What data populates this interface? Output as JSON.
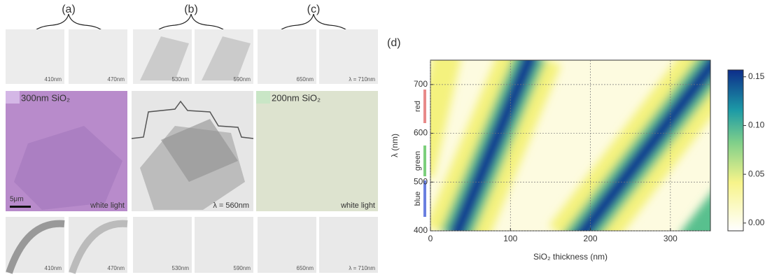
{
  "panels": [
    "(a)",
    "(b)",
    "(c)",
    "(d)"
  ],
  "tiles_top": [
    "410nm",
    "470nm",
    "530nm",
    "590nm",
    "650nm",
    "λ = 710nm"
  ],
  "middle": {
    "a_label": "300nm SiO₂",
    "scale": "5μm",
    "a_caption": "white light",
    "b_caption": "λ = 560nm",
    "c_label": "200nm SiO₂",
    "c_caption": "white light"
  },
  "tiles_bottom": [
    "410nm",
    "470nm",
    "530nm",
    "590nm",
    "650nm",
    "λ = 710nm"
  ],
  "chart_data": {
    "type": "heatmap",
    "xlabel": "SiO₂ thickness (nm)",
    "ylabel": "λ (nm)",
    "xlim": [
      0,
      350
    ],
    "ylim": [
      400,
      750
    ],
    "xticks": [
      0,
      100,
      200,
      300
    ],
    "yticks": [
      400,
      500,
      600,
      700
    ],
    "grid": true,
    "bands": [
      "red",
      "green",
      "blue"
    ],
    "colorbar": {
      "lim": [
        -0.008,
        0.157
      ],
      "ticks": [
        {
          "value": 0,
          "label": "0.00"
        },
        {
          "value": 0.05,
          "label": "0.05"
        },
        {
          "value": 0.1,
          "label": "0.10"
        },
        {
          "value": 0.15,
          "label": "0.15"
        }
      ]
    }
  }
}
